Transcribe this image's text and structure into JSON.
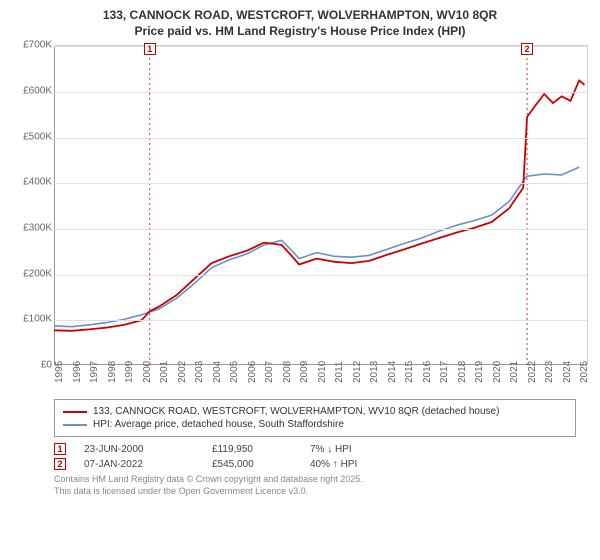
{
  "title_line1": "133, CANNOCK ROAD, WESTCROFT, WOLVERHAMPTON, WV10 8QR",
  "title_line2": "Price paid vs. HM Land Registry's House Price Index (HPI)",
  "chart": {
    "type": "line",
    "background_color": "#ffffff",
    "grid_color": "#e0e0e0",
    "axis_color": "#999999",
    "tick_font_size": 10,
    "tick_color": "#666666",
    "x_years": [
      1995,
      1996,
      1997,
      1998,
      1999,
      2000,
      2001,
      2002,
      2003,
      2004,
      2005,
      2006,
      2007,
      2008,
      2009,
      2010,
      2011,
      2012,
      2013,
      2014,
      2015,
      2016,
      2017,
      2018,
      2019,
      2020,
      2021,
      2022,
      2023,
      2024,
      2025
    ],
    "xlim": [
      1995,
      2025.5
    ],
    "ylim": [
      0,
      700000
    ],
    "ytick_step": 100000,
    "ytick_labels": [
      "£0",
      "£100K",
      "£200K",
      "£300K",
      "£400K",
      "£500K",
      "£600K",
      "£700K"
    ],
    "series": [
      {
        "name": "HPI",
        "label": "HPI: Average price, detached house, South Staffordshire",
        "color": "#6b8fc7",
        "line_width": 1.6,
        "points": [
          [
            1995,
            88000
          ],
          [
            1996,
            86000
          ],
          [
            1997,
            90000
          ],
          [
            1998,
            95000
          ],
          [
            1999,
            102000
          ],
          [
            2000,
            112000
          ],
          [
            2001,
            125000
          ],
          [
            2002,
            148000
          ],
          [
            2003,
            180000
          ],
          [
            2004,
            215000
          ],
          [
            2005,
            232000
          ],
          [
            2006,
            245000
          ],
          [
            2007,
            265000
          ],
          [
            2008,
            275000
          ],
          [
            2008.6,
            252000
          ],
          [
            2009,
            235000
          ],
          [
            2010,
            248000
          ],
          [
            2011,
            240000
          ],
          [
            2012,
            238000
          ],
          [
            2013,
            242000
          ],
          [
            2014,
            255000
          ],
          [
            2015,
            268000
          ],
          [
            2016,
            280000
          ],
          [
            2017,
            295000
          ],
          [
            2018,
            308000
          ],
          [
            2019,
            318000
          ],
          [
            2020,
            330000
          ],
          [
            2021,
            360000
          ],
          [
            2022,
            415000
          ],
          [
            2023,
            420000
          ],
          [
            2024,
            418000
          ],
          [
            2025,
            435000
          ]
        ]
      },
      {
        "name": "PricePaid",
        "label": "133, CANNOCK ROAD, WESTCROFT, WOLVERHAMPTON, WV10 8QR (detached house)",
        "color": "#cc0000",
        "line_width": 1.8,
        "points": [
          [
            1995,
            78000
          ],
          [
            1996,
            77000
          ],
          [
            1997,
            80000
          ],
          [
            1998,
            84000
          ],
          [
            1999,
            90000
          ],
          [
            2000,
            100000
          ],
          [
            2000.47,
            119950
          ],
          [
            2001,
            130000
          ],
          [
            2002,
            155000
          ],
          [
            2003,
            190000
          ],
          [
            2004,
            225000
          ],
          [
            2005,
            240000
          ],
          [
            2006,
            252000
          ],
          [
            2007,
            270000
          ],
          [
            2008,
            265000
          ],
          [
            2008.6,
            240000
          ],
          [
            2009,
            222000
          ],
          [
            2010,
            235000
          ],
          [
            2011,
            228000
          ],
          [
            2012,
            225000
          ],
          [
            2013,
            230000
          ],
          [
            2014,
            243000
          ],
          [
            2015,
            255000
          ],
          [
            2016,
            268000
          ],
          [
            2017,
            280000
          ],
          [
            2018,
            292000
          ],
          [
            2019,
            302000
          ],
          [
            2020,
            315000
          ],
          [
            2021,
            345000
          ],
          [
            2021.8,
            390000
          ],
          [
            2022.02,
            545000
          ],
          [
            2022.5,
            570000
          ],
          [
            2023,
            595000
          ],
          [
            2023.5,
            575000
          ],
          [
            2024,
            590000
          ],
          [
            2024.5,
            580000
          ],
          [
            2025,
            625000
          ],
          [
            2025.3,
            615000
          ]
        ]
      }
    ],
    "sale_markers": [
      {
        "n": "1",
        "year": 2000.47,
        "color": "#cc0000",
        "arrow_top": true
      },
      {
        "n": "2",
        "year": 2022.02,
        "color": "#cc0000",
        "arrow_top": true
      }
    ]
  },
  "legend": {
    "border_color": "#999999",
    "font_size": 10,
    "items": [
      {
        "color": "#cc0000",
        "label": "133, CANNOCK ROAD, WESTCROFT, WOLVERHAMPTON, WV10 8QR (detached house)"
      },
      {
        "color": "#6b8fc7",
        "label": "HPI: Average price, detached house, South Staffordshire"
      }
    ]
  },
  "sales": [
    {
      "n": "1",
      "color": "#cc0000",
      "date": "23-JUN-2000",
      "price": "£119,950",
      "delta": "7% ↓ HPI"
    },
    {
      "n": "2",
      "color": "#cc0000",
      "date": "07-JAN-2022",
      "price": "£545,000",
      "delta": "40% ↑ HPI"
    }
  ],
  "footer_line1": "Contains HM Land Registry data © Crown copyright and database right 2025.",
  "footer_line2": "This data is licensed under the Open Government Licence v3.0."
}
